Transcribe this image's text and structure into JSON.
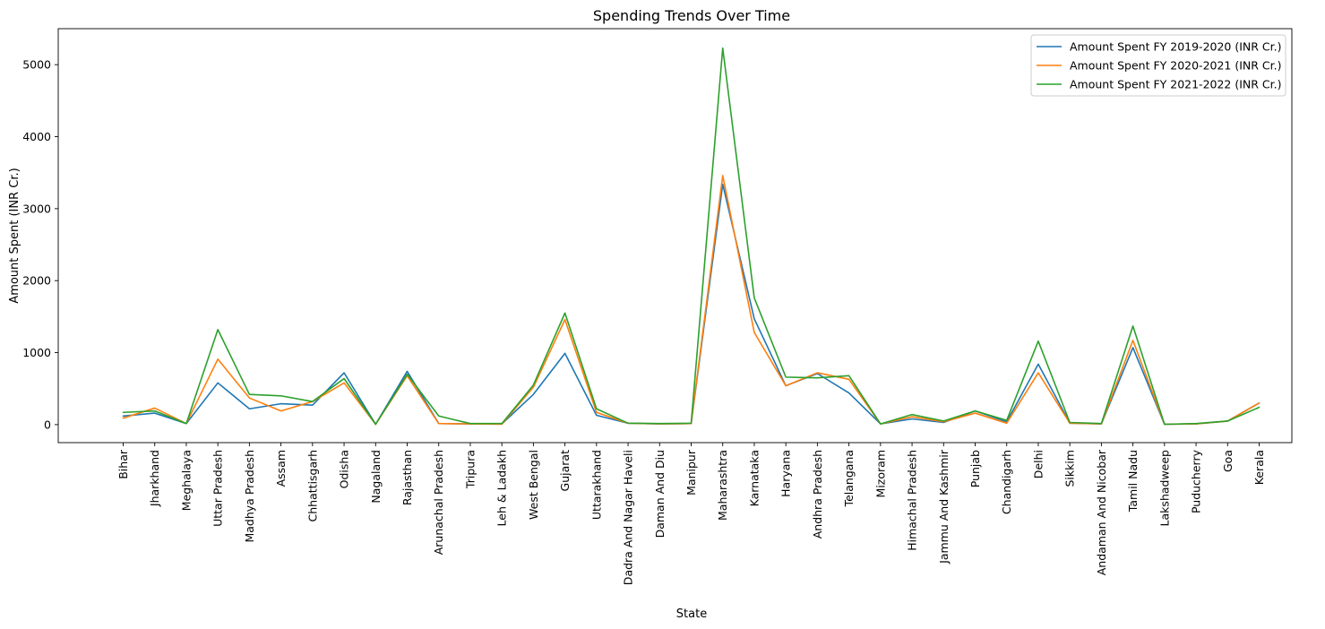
{
  "chart_data": {
    "type": "line",
    "title": "Spending Trends Over Time",
    "xlabel": "State",
    "ylabel": "Amount Spent (INR Cr.)",
    "ylim": [
      -250,
      5500
    ],
    "yticks": [
      0,
      1000,
      2000,
      3000,
      4000,
      5000
    ],
    "grid": false,
    "legend_position": "top-right",
    "categories": [
      "Bihar",
      "Jharkhand",
      "Meghalaya",
      "Uttar Pradesh",
      "Madhya Pradesh",
      "Assam",
      "Chhattisgarh",
      "Odisha",
      "Nagaland",
      "Rajasthan",
      "Arunachal Pradesh",
      "Tripura",
      "Leh & Ladakh",
      "West Bengal",
      "Gujarat",
      "Uttarakhand",
      "Dadra And Nagar Haveli",
      "Daman And Diu",
      "Manipur",
      "Maharashtra",
      "Karnataka",
      "Haryana",
      "Andhra Pradesh",
      "Telangana",
      "Mizoram",
      "Himachal Pradesh",
      "Jammu And Kashmir",
      "Punjab",
      "Chandigarh",
      "Delhi",
      "Sikkim",
      "Andaman And Nicobar",
      "Tamil Nadu",
      "Lakshadweep",
      "Puducherry",
      "Goa",
      "Kerala"
    ],
    "series": [
      {
        "name": "Amount Spent FY 2019-2020 (INR Cr.)",
        "color": "#1f77b4",
        "values": [
          120,
          160,
          15,
          580,
          220,
          290,
          270,
          720,
          5,
          740,
          15,
          10,
          10,
          420,
          990,
          130,
          20,
          10,
          15,
          3340,
          1470,
          540,
          710,
          440,
          10,
          80,
          30,
          190,
          40,
          840,
          20,
          10,
          1070,
          5,
          10,
          50,
          300
        ]
      },
      {
        "name": "Amount Spent FY 2020-2021 (INR Cr.)",
        "color": "#ff7f0e",
        "values": [
          90,
          230,
          15,
          910,
          370,
          190,
          320,
          580,
          5,
          680,
          15,
          10,
          5,
          520,
          1460,
          170,
          20,
          10,
          15,
          3460,
          1280,
          540,
          720,
          630,
          10,
          110,
          40,
          160,
          20,
          720,
          20,
          10,
          1170,
          5,
          10,
          50,
          300
        ]
      },
      {
        "name": "Amount Spent FY 2021-2022 (INR Cr.)",
        "color": "#2ca02c",
        "values": [
          170,
          190,
          15,
          1320,
          420,
          400,
          320,
          640,
          5,
          700,
          120,
          15,
          15,
          550,
          1550,
          220,
          20,
          15,
          20,
          5230,
          1760,
          660,
          650,
          680,
          10,
          140,
          50,
          190,
          60,
          1160,
          30,
          15,
          1370,
          5,
          15,
          50,
          240
        ]
      }
    ]
  }
}
